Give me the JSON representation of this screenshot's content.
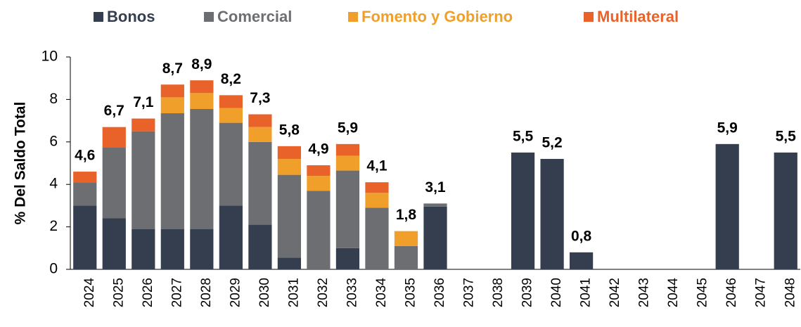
{
  "chart_data": {
    "type": "stacked-bar",
    "ylabel": "% Del Saldo Total",
    "categories": [
      "2024",
      "2025",
      "2026",
      "2027",
      "2028",
      "2029",
      "2030",
      "2031",
      "2032",
      "2033",
      "2034",
      "2035",
      "2036",
      "2037",
      "2038",
      "2039",
      "2040",
      "2041",
      "2042",
      "2043",
      "2044",
      "2045",
      "2046",
      "2047",
      "2048"
    ],
    "series": [
      {
        "name": "Bonos",
        "color": "#343e4f",
        "values": [
          3.0,
          2.4,
          1.9,
          1.9,
          1.9,
          3.0,
          2.1,
          0.55,
          null,
          1.0,
          null,
          null,
          2.95,
          null,
          null,
          5.5,
          5.2,
          0.8,
          null,
          null,
          null,
          null,
          5.9,
          null,
          5.5
        ]
      },
      {
        "name": "Comercial",
        "color": "#6d6e71",
        "values": [
          1.1,
          3.35,
          4.6,
          5.45,
          5.65,
          3.9,
          3.9,
          3.9,
          3.7,
          3.65,
          2.9,
          1.1,
          0.15,
          null,
          null,
          null,
          null,
          null,
          null,
          null,
          null,
          null,
          null,
          null,
          null
        ]
      },
      {
        "name": "Fomento y Gobierno",
        "color": "#f0a02a",
        "values": [
          null,
          null,
          null,
          0.75,
          0.75,
          0.7,
          0.7,
          0.75,
          0.7,
          0.7,
          0.7,
          0.7,
          null,
          null,
          null,
          null,
          null,
          null,
          null,
          null,
          null,
          null,
          null,
          null,
          null
        ]
      },
      {
        "name": "Multilateral",
        "color": "#e8622a",
        "values": [
          0.5,
          0.95,
          0.6,
          0.6,
          0.6,
          0.6,
          0.6,
          0.6,
          0.5,
          0.55,
          0.5,
          null,
          null,
          null,
          null,
          null,
          null,
          null,
          null,
          null,
          null,
          null,
          null,
          null,
          null
        ]
      }
    ],
    "totals": {
      "values": [
        4.6,
        6.7,
        7.1,
        8.7,
        8.9,
        8.2,
        7.3,
        5.8,
        4.9,
        5.9,
        4.1,
        1.8,
        3.1,
        null,
        null,
        5.5,
        5.2,
        0.8,
        null,
        null,
        null,
        null,
        5.9,
        null,
        5.5
      ],
      "value_labels": [
        "4,6",
        "6,7",
        "7,1",
        "8,7",
        "8,9",
        "8,2",
        "7,3",
        "5,8",
        "4,9",
        "5,9",
        "4,1",
        "1,8",
        "3,1",
        null,
        null,
        "5,5",
        "5,2",
        "0,8",
        null,
        null,
        null,
        null,
        "5,9",
        null,
        "5,5"
      ]
    },
    "ylim": [
      0,
      10
    ],
    "yticks": [
      0,
      2,
      4,
      6,
      8,
      10
    ],
    "grid": false
  }
}
